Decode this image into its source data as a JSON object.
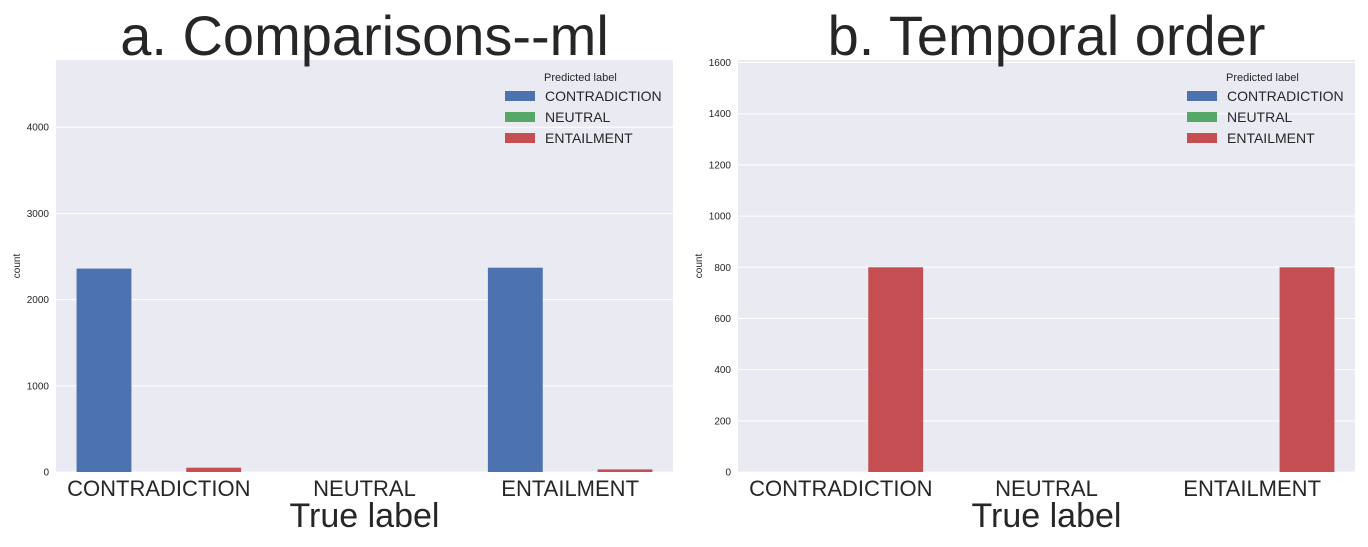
{
  "chart_data": [
    {
      "type": "bar",
      "title": "a. Comparisons--ml",
      "xlabel": "True label",
      "ylabel": "count",
      "categories": [
        "CONTRADICTION",
        "NEUTRAL",
        "ENTAILMENT"
      ],
      "series": [
        {
          "name": "CONTRADICTION",
          "color": "#4c72b0",
          "values": [
            2360,
            0,
            2370
          ]
        },
        {
          "name": "NEUTRAL",
          "color": "#55a868",
          "values": [
            0,
            0,
            0
          ]
        },
        {
          "name": "ENTAILMENT",
          "color": "#c44e52",
          "values": [
            50,
            0,
            30
          ]
        }
      ],
      "ylim": [
        0,
        4780
      ],
      "yticks": [
        0,
        1000,
        2000,
        3000,
        4000
      ],
      "legend_title": "Predicted label",
      "legend_position": "top-right",
      "grid": true
    },
    {
      "type": "bar",
      "title": "b. Temporal order",
      "xlabel": "True label",
      "ylabel": "count",
      "categories": [
        "CONTRADICTION",
        "NEUTRAL",
        "ENTAILMENT"
      ],
      "series": [
        {
          "name": "CONTRADICTION",
          "color": "#4c72b0",
          "values": [
            0,
            0,
            0
          ]
        },
        {
          "name": "NEUTRAL",
          "color": "#55a868",
          "values": [
            0,
            0,
            0
          ]
        },
        {
          "name": "ENTAILMENT",
          "color": "#c44e52",
          "values": [
            800,
            0,
            800
          ]
        }
      ],
      "ylim": [
        0,
        1610
      ],
      "yticks": [
        0,
        200,
        400,
        600,
        800,
        1000,
        1200,
        1400,
        1600
      ],
      "legend_title": "Predicted label",
      "legend_position": "top-right",
      "grid": true
    }
  ]
}
